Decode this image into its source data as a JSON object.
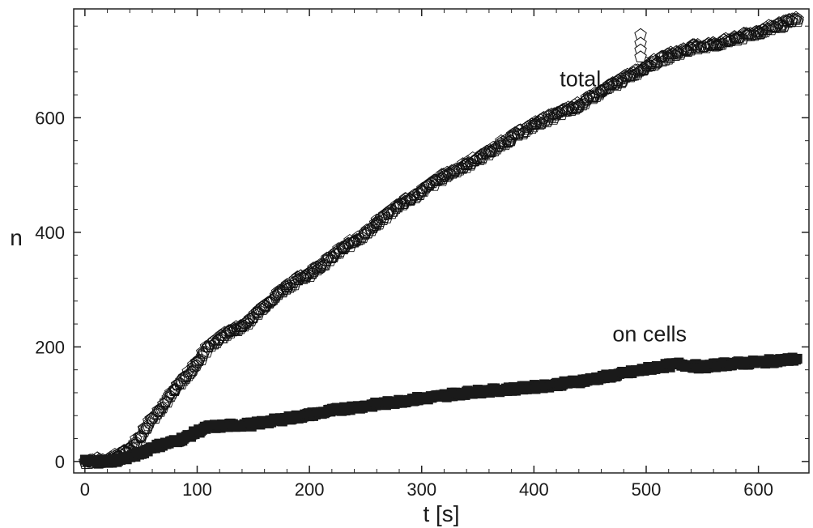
{
  "chart_data": {
    "type": "scatter",
    "xlabel": "t [s]",
    "ylabel": "n",
    "xlim": [
      -10,
      645
    ],
    "ylim": [
      -20,
      790
    ],
    "xticks": [
      0,
      100,
      200,
      300,
      400,
      500,
      600
    ],
    "yticks": [
      0,
      200,
      400,
      600
    ],
    "x_tick_labels": [
      "0",
      "100",
      "200",
      "300",
      "400",
      "500",
      "600"
    ],
    "y_tick_labels": [
      "0",
      "200",
      "400",
      "600"
    ],
    "grid": false,
    "annotations": [
      {
        "text": "total",
        "x": 423,
        "y": 655
      },
      {
        "text": "on cells",
        "x": 470,
        "y": 210
      }
    ],
    "series": [
      {
        "name": "total",
        "marker": "open-pentagon",
        "x": [
          0,
          20,
          30,
          40,
          50,
          60,
          70,
          80,
          90,
          100,
          110,
          120,
          130,
          140,
          150,
          160,
          170,
          180,
          190,
          200,
          210,
          220,
          230,
          240,
          250,
          260,
          270,
          280,
          290,
          300,
          320,
          340,
          360,
          380,
          400,
          420,
          440,
          460,
          480,
          500,
          520,
          540,
          560,
          580,
          600,
          620,
          635
        ],
        "y": [
          0,
          3,
          10,
          22,
          45,
          75,
          100,
          125,
          148,
          172,
          200,
          215,
          228,
          235,
          252,
          272,
          290,
          305,
          318,
          328,
          342,
          356,
          372,
          385,
          398,
          415,
          432,
          448,
          458,
          472,
          498,
          518,
          540,
          565,
          588,
          605,
          622,
          645,
          668,
          690,
          708,
          722,
          728,
          738,
          750,
          762,
          772
        ]
      },
      {
        "name": "on cells",
        "marker": "filled-square",
        "x": [
          0,
          20,
          30,
          40,
          50,
          60,
          70,
          80,
          90,
          100,
          110,
          130,
          150,
          170,
          190,
          210,
          230,
          250,
          270,
          290,
          310,
          330,
          350,
          370,
          390,
          410,
          430,
          450,
          470,
          490,
          510,
          530,
          550,
          570,
          590,
          610,
          630,
          635
        ],
        "y": [
          0,
          0,
          3,
          8,
          15,
          25,
          30,
          35,
          42,
          52,
          60,
          63,
          65,
          72,
          78,
          85,
          92,
          97,
          102,
          108,
          112,
          118,
          122,
          125,
          128,
          132,
          137,
          143,
          150,
          157,
          165,
          170,
          165,
          170,
          172,
          175,
          178,
          180
        ]
      }
    ],
    "outlier": {
      "series": "total",
      "x": 495,
      "y": [
        745,
        730,
        718,
        706
      ]
    }
  }
}
